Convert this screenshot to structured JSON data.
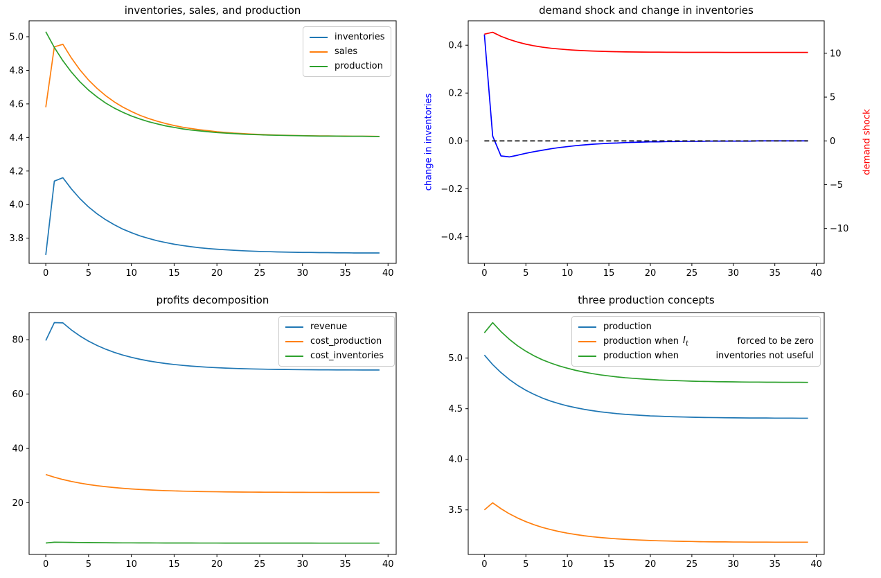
{
  "figure": {
    "background": "#ffffff"
  },
  "shared_x": [
    0,
    1,
    2,
    3,
    4,
    5,
    6,
    7,
    8,
    9,
    10,
    11,
    12,
    13,
    14,
    15,
    16,
    17,
    18,
    19,
    20,
    21,
    22,
    23,
    24,
    25,
    26,
    27,
    28,
    29,
    30,
    31,
    32,
    33,
    34,
    35,
    36,
    37,
    38,
    39
  ],
  "chart_data": [
    {
      "type": "line",
      "title": "inventories, sales, and production",
      "xlabel": "",
      "ylabel": "",
      "xlim": [
        -1.95,
        40.95
      ],
      "ylim": [
        3.65,
        5.095
      ],
      "grid": false,
      "legend_position": "upper right",
      "xticks": {
        "values": [
          0,
          5,
          10,
          15,
          20,
          25,
          30,
          35,
          40
        ],
        "labels": [
          "0",
          "5",
          "10",
          "15",
          "20",
          "25",
          "30",
          "35",
          "40"
        ]
      },
      "yticks": {
        "values": [
          3.8,
          4.0,
          4.2,
          4.4,
          4.6,
          4.8,
          5.0
        ],
        "labels": [
          "3.8",
          "4.0",
          "4.2",
          "4.4",
          "4.6",
          "4.8",
          "5.0"
        ]
      },
      "series": [
        {
          "id": "inventories",
          "name": "inventories",
          "color": "#1f77b4",
          "values": [
            3.7,
            4.14,
            4.16,
            4.093,
            4.035,
            3.986,
            3.945,
            3.91,
            3.88,
            3.854,
            3.833,
            3.814,
            3.799,
            3.785,
            3.774,
            3.764,
            3.756,
            3.749,
            3.743,
            3.738,
            3.734,
            3.731,
            3.728,
            3.725,
            3.723,
            3.721,
            3.72,
            3.718,
            3.717,
            3.716,
            3.715,
            3.715,
            3.714,
            3.714,
            3.713,
            3.713,
            3.712,
            3.712,
            3.712,
            3.712
          ]
        },
        {
          "id": "sales",
          "name": "sales",
          "color": "#ff7f0e",
          "values": [
            4.58,
            4.94,
            4.955,
            4.873,
            4.802,
            4.742,
            4.692,
            4.649,
            4.612,
            4.581,
            4.555,
            4.532,
            4.513,
            4.497,
            4.483,
            4.471,
            4.461,
            4.453,
            4.446,
            4.44,
            4.434,
            4.43,
            4.426,
            4.423,
            4.42,
            4.418,
            4.416,
            4.414,
            4.413,
            4.412,
            4.411,
            4.41,
            4.409,
            4.409,
            4.408,
            4.408,
            4.407,
            4.407,
            4.407,
            4.406
          ]
        },
        {
          "id": "production",
          "name": "production",
          "color": "#2ca02c",
          "values": [
            5.03,
            4.936,
            4.857,
            4.789,
            4.731,
            4.682,
            4.641,
            4.605,
            4.575,
            4.55,
            4.528,
            4.51,
            4.494,
            4.481,
            4.469,
            4.46,
            4.451,
            4.444,
            4.439,
            4.434,
            4.429,
            4.426,
            4.423,
            4.42,
            4.418,
            4.416,
            4.414,
            4.413,
            4.412,
            4.411,
            4.41,
            4.409,
            4.408,
            4.408,
            4.408,
            4.407,
            4.407,
            4.407,
            4.406,
            4.406
          ]
        }
      ]
    },
    {
      "type": "line",
      "title": "demand shock and change in inventories",
      "xlim": [
        -1.95,
        40.95
      ],
      "ylim": [
        -0.512,
        0.502
      ],
      "y2lim": [
        -13.98,
        13.71
      ],
      "grid": false,
      "ylabel_left": {
        "text": "change in inventories",
        "color": "#0000ff"
      },
      "ylabel_right": {
        "text": "demand shock",
        "color": "#ff0000"
      },
      "xticks": {
        "values": [
          0,
          5,
          10,
          15,
          20,
          25,
          30,
          35,
          40
        ],
        "labels": [
          "0",
          "5",
          "10",
          "15",
          "20",
          "25",
          "30",
          "35",
          "40"
        ]
      },
      "yticks": {
        "values": [
          -0.4,
          -0.2,
          0.0,
          0.2,
          0.4
        ],
        "labels": [
          "−0.4",
          "−0.2",
          "0.0",
          "0.2",
          "0.4"
        ]
      },
      "y2ticks": {
        "values": [
          -10,
          -5,
          0,
          5,
          10
        ],
        "labels": [
          "−10",
          "−5",
          "0",
          "5",
          "10"
        ]
      },
      "refline": {
        "y": 0,
        "axis": "left",
        "color": "#000000",
        "style": "dashed"
      },
      "series": [
        {
          "id": "change-in-inventories",
          "name": "change in inventories",
          "color": "#0000ff",
          "axis": "left",
          "values": [
            0.445,
            0.02,
            -0.063,
            -0.067,
            -0.06,
            -0.052,
            -0.045,
            -0.039,
            -0.033,
            -0.028,
            -0.024,
            -0.02,
            -0.017,
            -0.014,
            -0.012,
            -0.01,
            -0.009,
            -0.007,
            -0.006,
            -0.005,
            -0.004,
            -0.004,
            -0.003,
            -0.003,
            -0.002,
            -0.002,
            -0.002,
            -0.001,
            -0.001,
            -0.001,
            -0.001,
            -0.001,
            -0.001,
            0.0,
            0.0,
            0.0,
            0.0,
            0.0,
            0.0,
            0.0
          ]
        },
        {
          "id": "demand-shock",
          "name": "demand shock",
          "color": "#ff0000",
          "axis": "right",
          "values": [
            12.18,
            12.4,
            11.94,
            11.58,
            11.28,
            11.04,
            10.85,
            10.7,
            10.58,
            10.49,
            10.41,
            10.35,
            10.3,
            10.26,
            10.23,
            10.2,
            10.18,
            10.16,
            10.15,
            10.14,
            10.13,
            10.13,
            10.12,
            10.12,
            10.11,
            10.11,
            10.11,
            10.11,
            10.11,
            10.1,
            10.1,
            10.1,
            10.1,
            10.1,
            10.1,
            10.1,
            10.1,
            10.1,
            10.1,
            10.1
          ]
        }
      ]
    },
    {
      "type": "line",
      "title": "profits decomposition",
      "xlim": [
        -1.95,
        40.95
      ],
      "ylim": [
        1.0,
        90.0
      ],
      "grid": false,
      "legend_position": "upper right",
      "xticks": {
        "values": [
          0,
          5,
          10,
          15,
          20,
          25,
          30,
          35,
          40
        ],
        "labels": [
          "0",
          "5",
          "10",
          "15",
          "20",
          "25",
          "30",
          "35",
          "40"
        ]
      },
      "yticks": {
        "values": [
          20,
          40,
          60,
          80
        ],
        "labels": [
          "20",
          "40",
          "60",
          "80"
        ]
      },
      "series": [
        {
          "id": "revenue",
          "name": "revenue",
          "color": "#1f77b4",
          "values": [
            79.7,
            86.3,
            86.2,
            83.59,
            81.37,
            79.48,
            77.88,
            76.52,
            75.36,
            74.37,
            73.53,
            72.82,
            72.21,
            71.7,
            71.26,
            70.89,
            70.57,
            70.3,
            70.07,
            69.87,
            69.71,
            69.57,
            69.45,
            69.35,
            69.27,
            69.2,
            69.14,
            69.09,
            69.05,
            69.01,
            68.98,
            68.96,
            68.93,
            68.92,
            68.9,
            68.89,
            68.88,
            68.87,
            68.87,
            68.86
          ]
        },
        {
          "id": "cost-production",
          "name": "cost_production",
          "color": "#ff7f0e",
          "values": [
            30.4,
            29.41,
            28.57,
            27.85,
            27.25,
            26.73,
            26.29,
            25.92,
            25.6,
            25.33,
            25.1,
            24.9,
            24.74,
            24.6,
            24.48,
            24.38,
            24.29,
            24.22,
            24.15,
            24.1,
            24.06,
            24.02,
            23.98,
            23.96,
            23.93,
            23.91,
            23.9,
            23.88,
            23.87,
            23.86,
            23.85,
            23.84,
            23.84,
            23.83,
            23.83,
            23.82,
            23.82,
            23.82,
            23.82,
            23.81
          ]
        },
        {
          "id": "cost-inventories",
          "name": "cost_inventories",
          "color": "#2ca02c",
          "values": [
            5.2,
            5.5,
            5.48,
            5.43,
            5.39,
            5.36,
            5.33,
            5.3,
            5.28,
            5.26,
            5.25,
            5.24,
            5.23,
            5.22,
            5.21,
            5.21,
            5.2,
            5.2,
            5.19,
            5.19,
            5.19,
            5.18,
            5.18,
            5.18,
            5.18,
            5.17,
            5.17,
            5.17,
            5.17,
            5.17,
            5.17,
            5.17,
            5.16,
            5.16,
            5.16,
            5.16,
            5.16,
            5.16,
            5.16,
            5.16
          ]
        }
      ]
    },
    {
      "type": "line",
      "title": "three production concepts",
      "xlim": [
        -1.95,
        40.95
      ],
      "ylim": [
        3.06,
        5.45
      ],
      "grid": false,
      "legend_position": "upper right",
      "xticks": {
        "values": [
          0,
          5,
          10,
          15,
          20,
          25,
          30,
          35,
          40
        ],
        "labels": [
          "0",
          "5",
          "10",
          "15",
          "20",
          "25",
          "30",
          "35",
          "40"
        ]
      },
      "yticks": {
        "values": [
          3.5,
          4.0,
          4.5,
          5.0
        ],
        "labels": [
          "3.5",
          "4.0",
          "4.5",
          "5.0"
        ]
      },
      "series": [
        {
          "id": "production",
          "name": "production",
          "color": "#1f77b4",
          "values": [
            5.03,
            4.936,
            4.857,
            4.789,
            4.731,
            4.682,
            4.641,
            4.605,
            4.575,
            4.55,
            4.528,
            4.51,
            4.494,
            4.481,
            4.469,
            4.46,
            4.451,
            4.444,
            4.439,
            4.434,
            4.429,
            4.426,
            4.423,
            4.42,
            4.418,
            4.416,
            4.414,
            4.413,
            4.412,
            4.411,
            4.41,
            4.409,
            4.408,
            4.408,
            4.408,
            4.407,
            4.407,
            4.407,
            4.406,
            4.406
          ]
        },
        {
          "id": "production-it-zero",
          "name": "production when I_t forced to be zero",
          "color": "#ff7f0e",
          "label_prefix": "production when",
          "label_var": "I",
          "label_var_sub": "t",
          "label_suffix": "forced to be zero",
          "values": [
            3.5,
            3.57,
            3.512,
            3.462,
            3.42,
            3.384,
            3.353,
            3.327,
            3.305,
            3.286,
            3.27,
            3.257,
            3.245,
            3.235,
            3.227,
            3.22,
            3.214,
            3.209,
            3.205,
            3.201,
            3.198,
            3.195,
            3.193,
            3.191,
            3.189,
            3.188,
            3.186,
            3.185,
            3.184,
            3.184,
            3.183,
            3.183,
            3.182,
            3.182,
            3.182,
            3.181,
            3.181,
            3.181,
            3.181,
            3.181
          ]
        },
        {
          "id": "production-no-inventories",
          "name": "production when inventories not useful",
          "color": "#2ca02c",
          "label_prefix": "production when",
          "label_suffix": "inventories not useful",
          "values": [
            5.25,
            5.35,
            5.262,
            5.186,
            5.122,
            5.068,
            5.022,
            4.983,
            4.951,
            4.923,
            4.9,
            4.879,
            4.862,
            4.847,
            4.834,
            4.824,
            4.814,
            4.806,
            4.8,
            4.794,
            4.789,
            4.784,
            4.781,
            4.778,
            4.775,
            4.772,
            4.77,
            4.769,
            4.767,
            4.766,
            4.765,
            4.764,
            4.763,
            4.763,
            4.762,
            4.762,
            4.761,
            4.761,
            4.761,
            4.76
          ]
        }
      ]
    }
  ]
}
